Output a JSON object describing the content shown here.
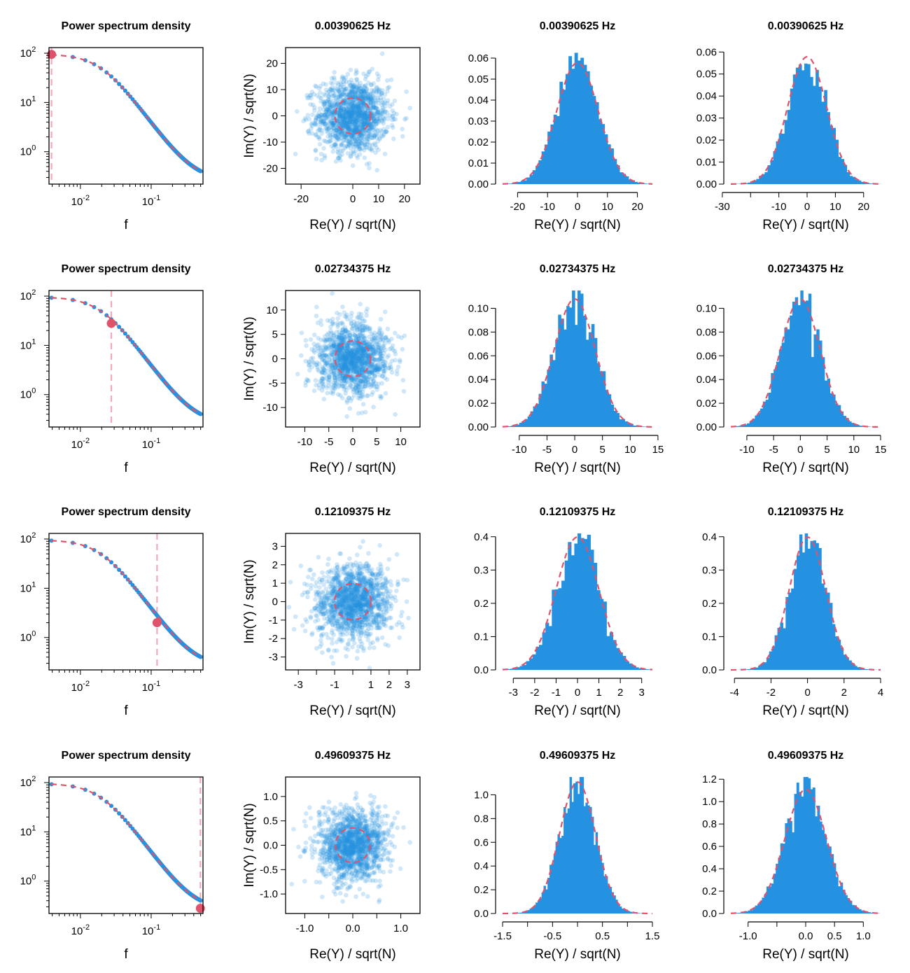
{
  "colors": {
    "data": "#2492e0",
    "model": "#df536b",
    "marker_line": "#f4a9b8",
    "axis": "#000000"
  },
  "chart_data": [
    {
      "type": "line",
      "role": "psd",
      "title": "Power spectrum density",
      "xlabel": "f",
      "ylabel": "",
      "xscale": "log",
      "yscale": "log",
      "xlim": [
        0.0036,
        0.54
      ],
      "ylim": [
        0.22,
        130
      ],
      "highlight_f": 0.00390625,
      "highlight_psd": 94.6,
      "psd_model": {
        "form": "A/(1+(f/fc)^2)+B",
        "A": 96,
        "fc": 0.02,
        "B": 0.25
      },
      "xticks": [
        {
          "v": 0.01,
          "base": "10",
          "exp": "-2"
        },
        {
          "v": 0.1,
          "base": "10",
          "exp": "-1"
        }
      ],
      "yticks": [
        {
          "v": 1,
          "base": "10",
          "exp": "0"
        },
        {
          "v": 10,
          "base": "10",
          "exp": "1"
        },
        {
          "v": 100,
          "base": "10",
          "exp": "2"
        }
      ]
    },
    {
      "type": "scatter",
      "role": "complex",
      "title": "0.00390625 Hz",
      "xlabel": "Re(Y) / sqrt(N)",
      "ylabel": "Im(Y) / sqrt(N)",
      "xlim": [
        -26,
        26
      ],
      "ylim": [
        -26,
        26
      ],
      "sigma": 6.9,
      "circle_radius": 6.9,
      "xticks": [
        {
          "v": -20,
          "l": "-20"
        },
        {
          "v": 0,
          "l": "0"
        },
        {
          "v": 10,
          "l": "10"
        },
        {
          "v": 20,
          "l": "20"
        }
      ],
      "yticks": [
        {
          "v": -20,
          "l": "-20"
        },
        {
          "v": -10,
          "l": "-10"
        },
        {
          "v": 0,
          "l": "0"
        },
        {
          "v": 10,
          "l": "10"
        },
        {
          "v": 20,
          "l": "20"
        }
      ]
    },
    {
      "type": "bar",
      "role": "hist",
      "title": "0.00390625 Hz",
      "xlabel": "Re(Y) / sqrt(N)",
      "ylabel": "",
      "xlim": [
        -25,
        25
      ],
      "ylim": [
        0,
        0.065
      ],
      "sigma": 6.9,
      "bin_width": 1,
      "xticks": [
        {
          "v": -20,
          "l": "-20"
        },
        {
          "v": -10,
          "l": "-10"
        },
        {
          "v": 0,
          "l": "0"
        },
        {
          "v": 10,
          "l": "10"
        },
        {
          "v": 20,
          "l": "20"
        }
      ],
      "yticks": [
        {
          "v": 0,
          "l": "0.00"
        },
        {
          "v": 0.01,
          "l": "0.01"
        },
        {
          "v": 0.02,
          "l": "0.02"
        },
        {
          "v": 0.03,
          "l": "0.03"
        },
        {
          "v": 0.04,
          "l": "0.04"
        },
        {
          "v": 0.05,
          "l": "0.05"
        },
        {
          "v": 0.06,
          "l": "0.06"
        }
      ]
    },
    {
      "type": "bar",
      "role": "hist",
      "title": "0.00390625 Hz",
      "xlabel": "Re(Y) / sqrt(N)",
      "ylabel": "",
      "xlim": [
        -27,
        26
      ],
      "ylim": [
        0,
        0.062
      ],
      "sigma": 6.9,
      "bin_width": 1,
      "xticks": [
        {
          "v": -30,
          "l": "-30"
        },
        {
          "v": -20,
          "l": ""
        },
        {
          "v": -10,
          "l": "-10"
        },
        {
          "v": 0,
          "l": "0"
        },
        {
          "v": 10,
          "l": "10"
        },
        {
          "v": 20,
          "l": "20"
        }
      ],
      "yticks": [
        {
          "v": 0,
          "l": "0.00"
        },
        {
          "v": 0.01,
          "l": "0.01"
        },
        {
          "v": 0.02,
          "l": "0.02"
        },
        {
          "v": 0.03,
          "l": "0.03"
        },
        {
          "v": 0.04,
          "l": "0.04"
        },
        {
          "v": 0.05,
          "l": "0.05"
        },
        {
          "v": 0.06,
          "l": "0.06"
        }
      ]
    },
    {
      "type": "line",
      "role": "psd",
      "title": "Power spectrum density",
      "xlabel": "f",
      "ylabel": "",
      "xscale": "log",
      "yscale": "log",
      "xlim": [
        0.0036,
        0.54
      ],
      "ylim": [
        0.22,
        130
      ],
      "highlight_f": 0.02734375,
      "highlight_psd": 28,
      "psd_model": {
        "form": "A/(1+(f/fc)^2)+B",
        "A": 96,
        "fc": 0.02,
        "B": 0.25
      },
      "xticks": [
        {
          "v": 0.01,
          "base": "10",
          "exp": "-2"
        },
        {
          "v": 0.1,
          "base": "10",
          "exp": "-1"
        }
      ],
      "yticks": [
        {
          "v": 1,
          "base": "10",
          "exp": "0"
        },
        {
          "v": 10,
          "base": "10",
          "exp": "1"
        },
        {
          "v": 100,
          "base": "10",
          "exp": "2"
        }
      ]
    },
    {
      "type": "scatter",
      "role": "complex",
      "title": "0.02734375 Hz",
      "xlabel": "Re(Y) / sqrt(N)",
      "ylabel": "Im(Y) / sqrt(N)",
      "xlim": [
        -14,
        14
      ],
      "ylim": [
        -14,
        14
      ],
      "sigma": 3.7,
      "circle_radius": 3.7,
      "xticks": [
        {
          "v": -10,
          "l": "-10"
        },
        {
          "v": -5,
          "l": "-5"
        },
        {
          "v": 0,
          "l": "0"
        },
        {
          "v": 5,
          "l": "5"
        },
        {
          "v": 10,
          "l": "10"
        }
      ],
      "yticks": [
        {
          "v": -10,
          "l": "-10"
        },
        {
          "v": -5,
          "l": "-5"
        },
        {
          "v": 0,
          "l": "0"
        },
        {
          "v": 5,
          "l": "5"
        },
        {
          "v": 10,
          "l": "10"
        }
      ]
    },
    {
      "type": "bar",
      "role": "hist",
      "title": "0.02734375 Hz",
      "xlabel": "Re(Y) / sqrt(N)",
      "ylabel": "",
      "xlim": [
        -13,
        14
      ],
      "ylim": [
        0,
        0.115
      ],
      "sigma": 3.7,
      "bin_width": 0.5,
      "xticks": [
        {
          "v": -10,
          "l": "-10"
        },
        {
          "v": -5,
          "l": "-5"
        },
        {
          "v": 0,
          "l": "0"
        },
        {
          "v": 5,
          "l": "5"
        },
        {
          "v": 10,
          "l": "10"
        },
        {
          "v": 15,
          "l": "15"
        }
      ],
      "yticks": [
        {
          "v": 0,
          "l": "0.00"
        },
        {
          "v": 0.02,
          "l": "0.02"
        },
        {
          "v": 0.04,
          "l": "0.04"
        },
        {
          "v": 0.06,
          "l": "0.06"
        },
        {
          "v": 0.08,
          "l": "0.08"
        },
        {
          "v": 0.1,
          "l": "0.10"
        }
      ]
    },
    {
      "type": "bar",
      "role": "hist",
      "title": "0.02734375 Hz",
      "xlabel": "Re(Y) / sqrt(N)",
      "ylabel": "",
      "xlim": [
        -13,
        15
      ],
      "ylim": [
        0,
        0.115
      ],
      "sigma": 3.7,
      "bin_width": 0.5,
      "xticks": [
        {
          "v": -10,
          "l": "-10"
        },
        {
          "v": -5,
          "l": "-5"
        },
        {
          "v": 0,
          "l": "0"
        },
        {
          "v": 5,
          "l": "5"
        },
        {
          "v": 10,
          "l": "10"
        },
        {
          "v": 15,
          "l": "15"
        }
      ],
      "yticks": [
        {
          "v": 0,
          "l": "0.00"
        },
        {
          "v": 0.02,
          "l": "0.02"
        },
        {
          "v": 0.04,
          "l": "0.04"
        },
        {
          "v": 0.06,
          "l": "0.06"
        },
        {
          "v": 0.08,
          "l": "0.08"
        },
        {
          "v": 0.1,
          "l": "0.10"
        }
      ]
    },
    {
      "type": "line",
      "role": "psd",
      "title": "Power spectrum density",
      "xlabel": "f",
      "ylabel": "",
      "xscale": "log",
      "yscale": "log",
      "xlim": [
        0.0036,
        0.54
      ],
      "ylim": [
        0.22,
        130
      ],
      "highlight_f": 0.12109375,
      "highlight_psd": 2.0,
      "psd_model": {
        "form": "A/(1+(f/fc)^2)+B",
        "A": 96,
        "fc": 0.02,
        "B": 0.25
      },
      "xticks": [
        {
          "v": 0.01,
          "base": "10",
          "exp": "-2"
        },
        {
          "v": 0.1,
          "base": "10",
          "exp": "-1"
        }
      ],
      "yticks": [
        {
          "v": 1,
          "base": "10",
          "exp": "0"
        },
        {
          "v": 10,
          "base": "10",
          "exp": "1"
        },
        {
          "v": 100,
          "base": "10",
          "exp": "2"
        }
      ]
    },
    {
      "type": "scatter",
      "role": "complex",
      "title": "0.12109375 Hz",
      "xlabel": "Re(Y) / sqrt(N)",
      "ylabel": "Im(Y) / sqrt(N)",
      "xlim": [
        -3.7,
        3.7
      ],
      "ylim": [
        -3.7,
        3.7
      ],
      "sigma": 1.0,
      "circle_radius": 1.0,
      "xticks": [
        {
          "v": -3,
          "l": "-3"
        },
        {
          "v": -2,
          "l": ""
        },
        {
          "v": -1,
          "l": "-1"
        },
        {
          "v": 0,
          "l": ""
        },
        {
          "v": 1,
          "l": "1"
        },
        {
          "v": 2,
          "l": "2"
        },
        {
          "v": 3,
          "l": "3"
        }
      ],
      "yticks": [
        {
          "v": -3,
          "l": "-3"
        },
        {
          "v": -2,
          "l": "-2"
        },
        {
          "v": -1,
          "l": "-1"
        },
        {
          "v": 0,
          "l": "0"
        },
        {
          "v": 1,
          "l": "1"
        },
        {
          "v": 2,
          "l": "2"
        },
        {
          "v": 3,
          "l": "3"
        }
      ]
    },
    {
      "type": "bar",
      "role": "hist",
      "title": "0.12109375 Hz",
      "xlabel": "Re(Y) / sqrt(N)",
      "ylabel": "",
      "xlim": [
        -3.5,
        3.5
      ],
      "ylim": [
        0,
        0.41
      ],
      "sigma": 1.0,
      "bin_width": 0.15,
      "xticks": [
        {
          "v": -3,
          "l": "-3"
        },
        {
          "v": -2,
          "l": "-2"
        },
        {
          "v": -1,
          "l": "-1"
        },
        {
          "v": 0,
          "l": "0"
        },
        {
          "v": 1,
          "l": "1"
        },
        {
          "v": 2,
          "l": "2"
        },
        {
          "v": 3,
          "l": "3"
        }
      ],
      "yticks": [
        {
          "v": 0,
          "l": "0.0"
        },
        {
          "v": 0.1,
          "l": "0.1"
        },
        {
          "v": 0.2,
          "l": "0.2"
        },
        {
          "v": 0.3,
          "l": "0.3"
        },
        {
          "v": 0.4,
          "l": "0.4"
        }
      ]
    },
    {
      "type": "bar",
      "role": "hist",
      "title": "0.12109375 Hz",
      "xlabel": "Re(Y) / sqrt(N)",
      "ylabel": "",
      "xlim": [
        -4.2,
        4.0
      ],
      "ylim": [
        0,
        0.41
      ],
      "sigma": 1.0,
      "bin_width": 0.15,
      "xticks": [
        {
          "v": -4,
          "l": "-4"
        },
        {
          "v": -2,
          "l": "-2"
        },
        {
          "v": 0,
          "l": "0"
        },
        {
          "v": 2,
          "l": "2"
        },
        {
          "v": 4,
          "l": "4"
        }
      ],
      "yticks": [
        {
          "v": 0,
          "l": "0.0"
        },
        {
          "v": 0.1,
          "l": "0.1"
        },
        {
          "v": 0.2,
          "l": "0.2"
        },
        {
          "v": 0.3,
          "l": "0.3"
        },
        {
          "v": 0.4,
          "l": "0.4"
        }
      ]
    },
    {
      "type": "line",
      "role": "psd",
      "title": "Power spectrum density",
      "xlabel": "f",
      "ylabel": "",
      "xscale": "log",
      "yscale": "log",
      "xlim": [
        0.0036,
        0.54
      ],
      "ylim": [
        0.22,
        130
      ],
      "highlight_f": 0.49609375,
      "highlight_psd": 0.28,
      "psd_model": {
        "form": "A/(1+(f/fc)^2)+B",
        "A": 96,
        "fc": 0.02,
        "B": 0.25
      },
      "xticks": [
        {
          "v": 0.01,
          "base": "10",
          "exp": "-2"
        },
        {
          "v": 0.1,
          "base": "10",
          "exp": "-1"
        }
      ],
      "yticks": [
        {
          "v": 1,
          "base": "10",
          "exp": "0"
        },
        {
          "v": 10,
          "base": "10",
          "exp": "1"
        },
        {
          "v": 100,
          "base": "10",
          "exp": "2"
        }
      ]
    },
    {
      "type": "scatter",
      "role": "complex",
      "title": "0.49609375 Hz",
      "xlabel": "Re(Y) / sqrt(N)",
      "ylabel": "Im(Y) / sqrt(N)",
      "xlim": [
        -1.4,
        1.4
      ],
      "ylim": [
        -1.4,
        1.4
      ],
      "sigma": 0.36,
      "circle_radius": 0.36,
      "xticks": [
        {
          "v": -1.0,
          "l": "-1.0"
        },
        {
          "v": -0.5,
          "l": ""
        },
        {
          "v": 0,
          "l": "0.0"
        },
        {
          "v": 0.5,
          "l": ""
        },
        {
          "v": 1.0,
          "l": "1.0"
        }
      ],
      "yticks": [
        {
          "v": -1.0,
          "l": "-1.0"
        },
        {
          "v": -0.5,
          "l": "-0.5"
        },
        {
          "v": 0,
          "l": "0.0"
        },
        {
          "v": 0.5,
          "l": "0.5"
        },
        {
          "v": 1.0,
          "l": "1.0"
        }
      ]
    },
    {
      "type": "bar",
      "role": "hist",
      "title": "0.49609375 Hz",
      "xlabel": "Re(Y) / sqrt(N)",
      "ylabel": "",
      "xlim": [
        -1.5,
        1.5
      ],
      "ylim": [
        0,
        1.15
      ],
      "sigma": 0.36,
      "bin_width": 0.04,
      "xticks": [
        {
          "v": -1.5,
          "l": "-1.5"
        },
        {
          "v": -1.0,
          "l": ""
        },
        {
          "v": -0.5,
          "l": "-0.5"
        },
        {
          "v": 0,
          "l": ""
        },
        {
          "v": 0.5,
          "l": "0.5"
        },
        {
          "v": 1.0,
          "l": ""
        },
        {
          "v": 1.5,
          "l": "1.5"
        }
      ],
      "yticks": [
        {
          "v": 0,
          "l": "0.0"
        },
        {
          "v": 0.2,
          "l": "0.2"
        },
        {
          "v": 0.4,
          "l": "0.4"
        },
        {
          "v": 0.6,
          "l": "0.6"
        },
        {
          "v": 0.8,
          "l": "0.8"
        },
        {
          "v": 1.0,
          "l": "1.0"
        }
      ]
    },
    {
      "type": "bar",
      "role": "hist",
      "title": "0.49609375 Hz",
      "xlabel": "Re(Y) / sqrt(N)",
      "ylabel": "",
      "xlim": [
        -1.3,
        1.3
      ],
      "ylim": [
        0,
        1.22
      ],
      "sigma": 0.36,
      "bin_width": 0.04,
      "xticks": [
        {
          "v": -1.0,
          "l": "-1.0"
        },
        {
          "v": -0.5,
          "l": ""
        },
        {
          "v": 0,
          "l": "0.0"
        },
        {
          "v": 0.5,
          "l": "0.5"
        },
        {
          "v": 1.0,
          "l": "1.0"
        }
      ],
      "yticks": [
        {
          "v": 0,
          "l": "0.0"
        },
        {
          "v": 0.2,
          "l": "0.2"
        },
        {
          "v": 0.4,
          "l": "0.4"
        },
        {
          "v": 0.6,
          "l": "0.6"
        },
        {
          "v": 0.8,
          "l": "0.8"
        },
        {
          "v": 1.0,
          "l": "1.0"
        },
        {
          "v": 1.2,
          "l": "1.2"
        }
      ]
    }
  ]
}
